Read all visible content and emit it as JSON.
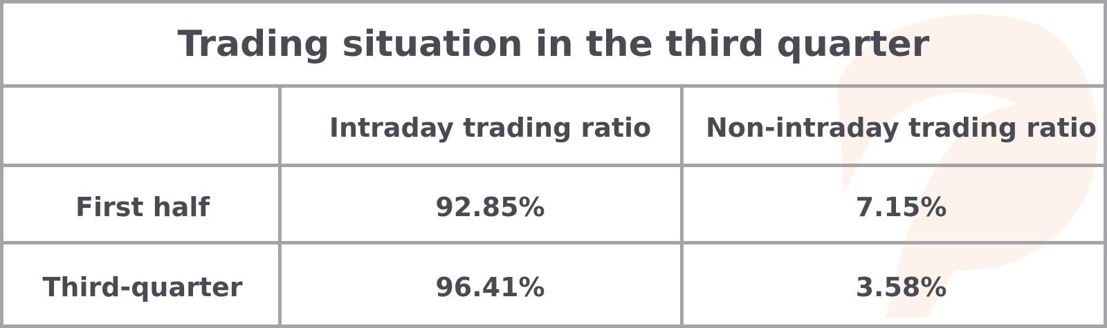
{
  "header": {
    "title": "Trading situation in the third quarter"
  },
  "table": {
    "columns": [
      "Intraday trading ratio",
      "Non-intraday trading ratio"
    ],
    "rows": [
      {
        "label": "First half",
        "cells": [
          "92.85%",
          "7.15%"
        ]
      },
      {
        "label": "Third-quarter",
        "cells": [
          "96.41%",
          "3.58%"
        ]
      }
    ]
  }
}
